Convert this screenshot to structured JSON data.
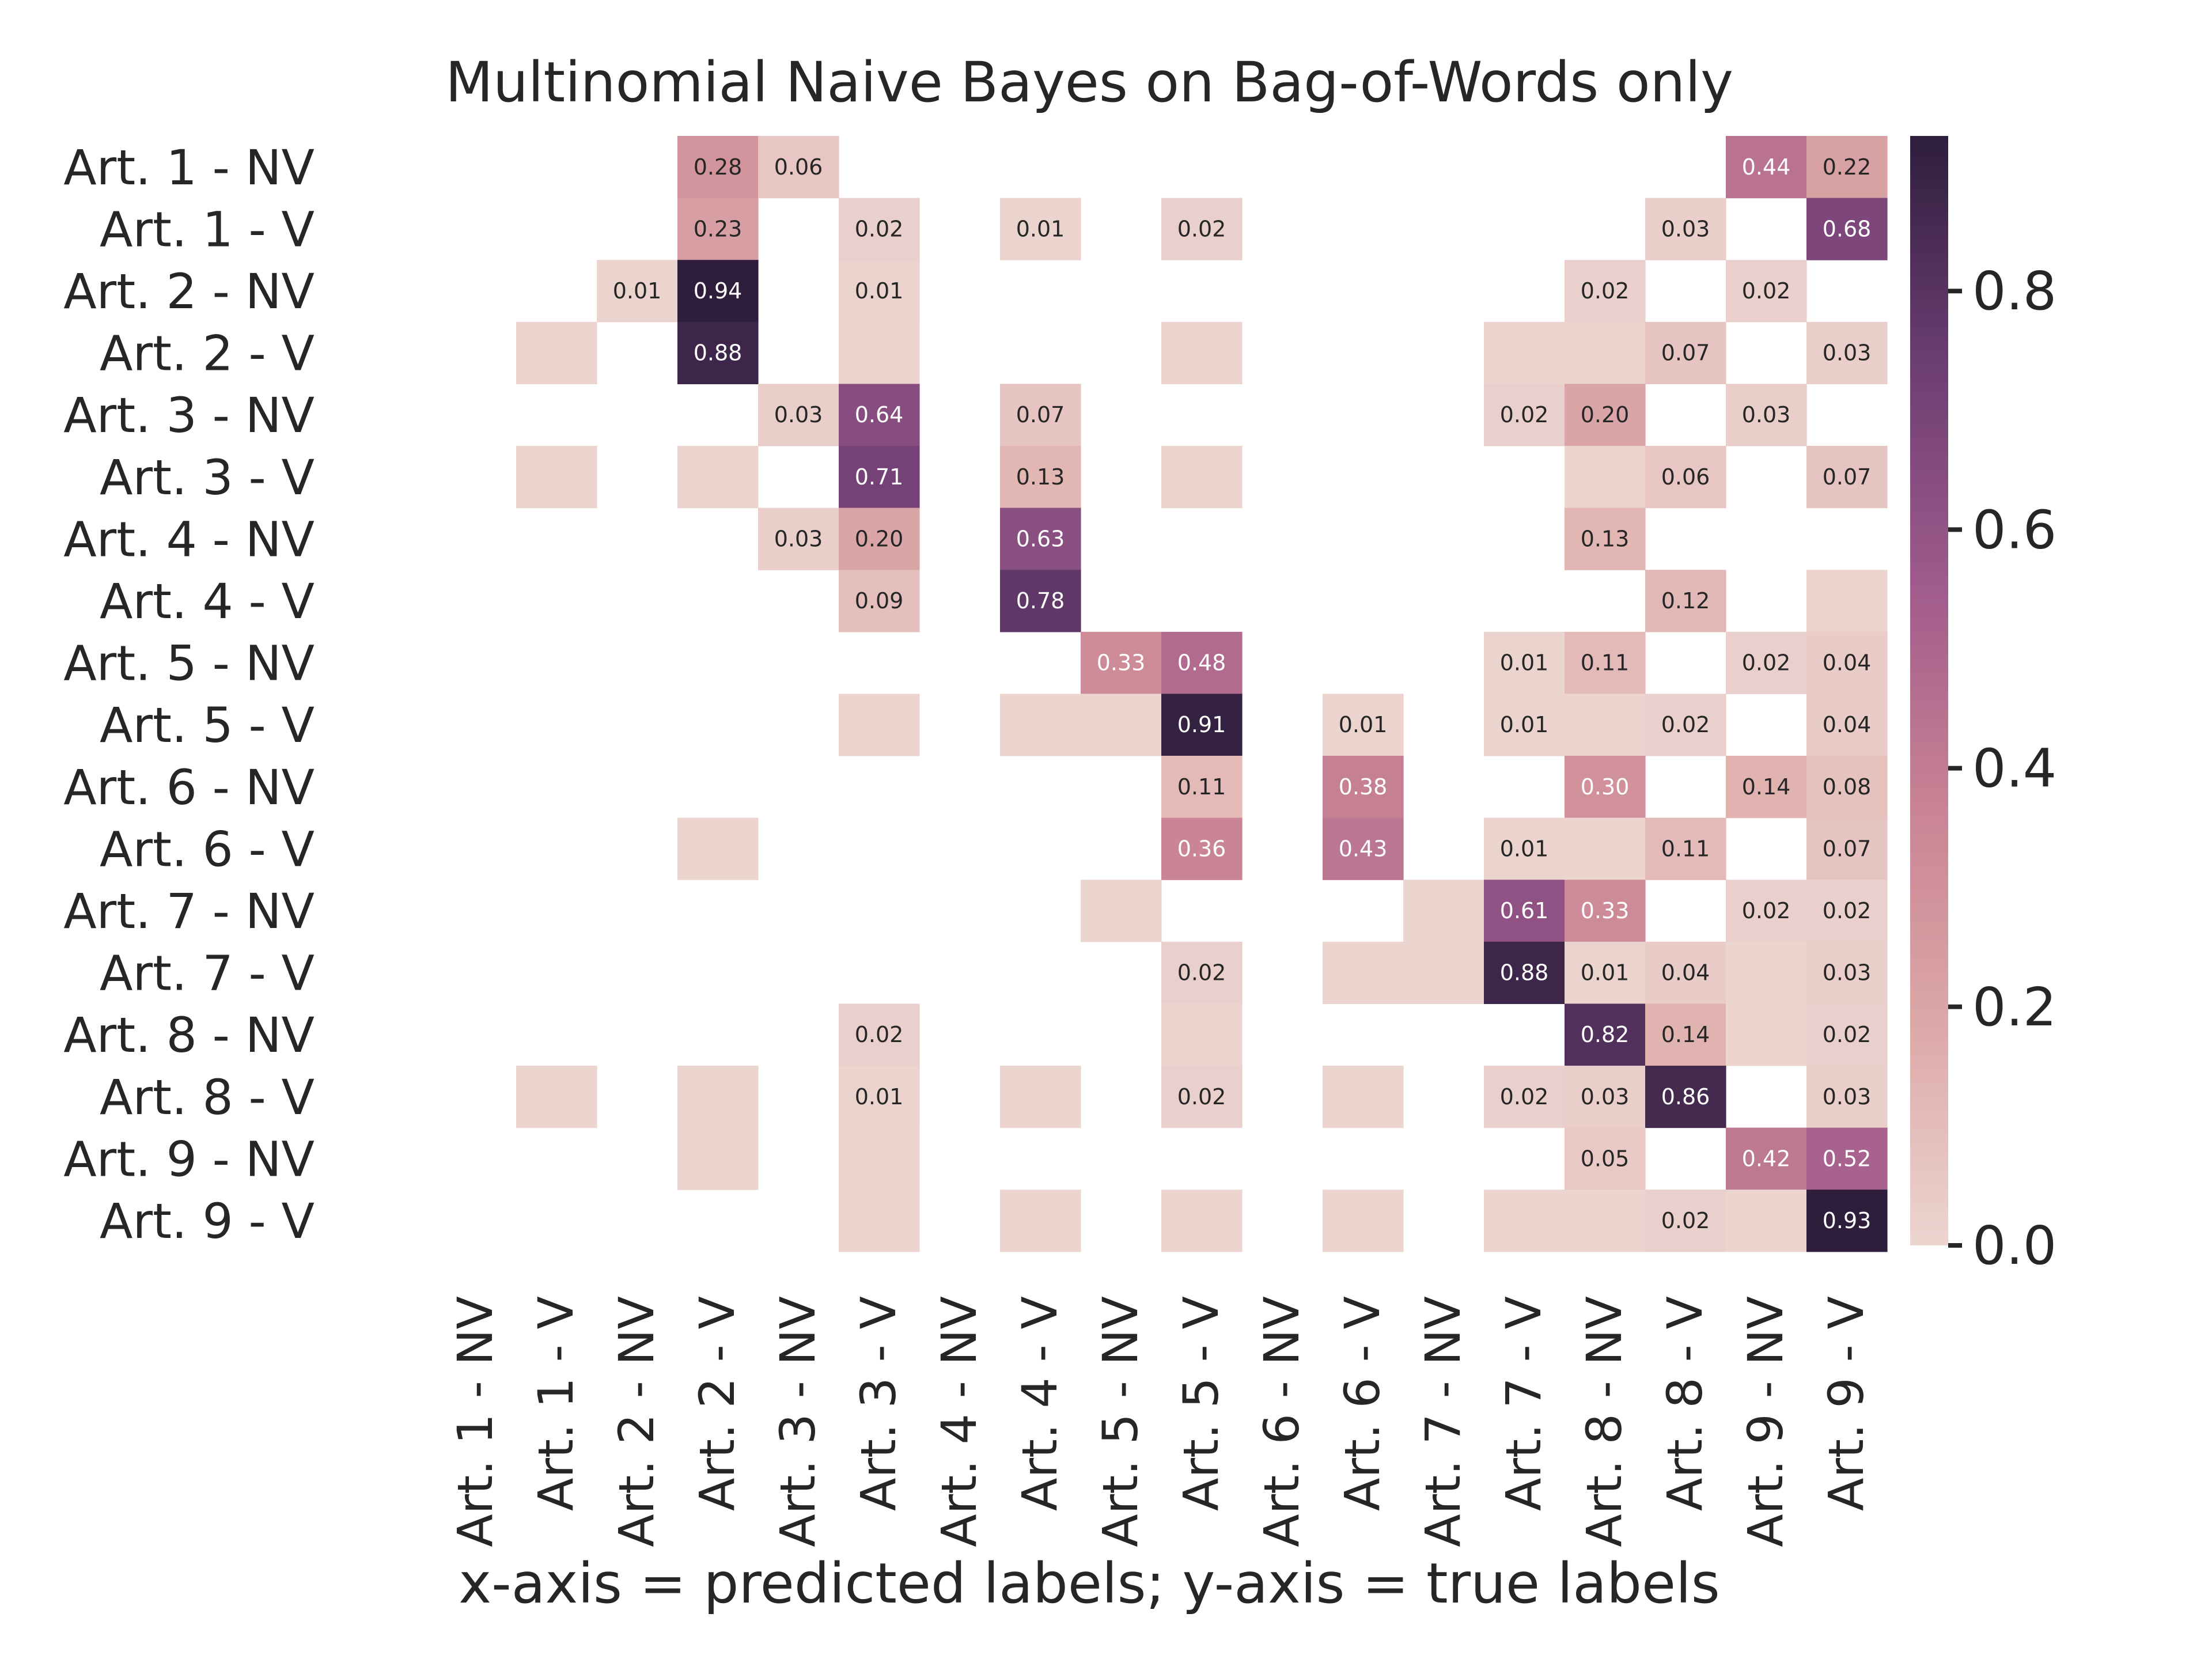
{
  "chart_data": {
    "type": "heatmap",
    "title": "Multinomial Naive Bayes on Bag-of-Words only",
    "xlabel": "x-axis = predicted labels; y-axis = true labels",
    "ylabel": "",
    "x_categories": [
      "Art. 1 - NV",
      "Art. 1 - V",
      "Art. 2 - NV",
      "Art. 2 - V",
      "Art. 3 - NV",
      "Art. 3 - V",
      "Art. 4 - NV",
      "Art. 4 - V",
      "Art. 5 - NV",
      "Art. 5 - V",
      "Art. 6 - NV",
      "Art. 6 - V",
      "Art. 7 - NV",
      "Art. 7 - V",
      "Art. 8 - NV",
      "Art. 8 - V",
      "Art. 9 - NV",
      "Art. 9 - V"
    ],
    "y_categories": [
      "Art. 1 - NV",
      "Art. 1 - V",
      "Art. 2 - NV",
      "Art. 2 - V",
      "Art. 3 - NV",
      "Art. 3 - V",
      "Art. 4 - NV",
      "Art. 4 - V",
      "Art. 5 - NV",
      "Art. 5 - V",
      "Art. 6 - NV",
      "Art. 6 - V",
      "Art. 7 - NV",
      "Art. 7 - V",
      "Art. 8 - NV",
      "Art. 8 - V",
      "Art. 9 - NV",
      "Art. 9 - V"
    ],
    "values": [
      [
        null,
        null,
        null,
        0.28,
        0.06,
        null,
        null,
        null,
        null,
        null,
        null,
        null,
        null,
        null,
        null,
        null,
        0.44,
        0.22
      ],
      [
        null,
        null,
        null,
        0.23,
        null,
        0.02,
        null,
        0.01,
        null,
        0.02,
        null,
        null,
        null,
        null,
        null,
        0.03,
        null,
        0.68
      ],
      [
        null,
        null,
        0.01,
        0.94,
        null,
        0.01,
        null,
        null,
        null,
        null,
        null,
        null,
        null,
        null,
        0.02,
        null,
        0.02,
        null
      ],
      [
        null,
        0.005,
        null,
        0.88,
        null,
        0.005,
        null,
        null,
        null,
        0.005,
        null,
        null,
        null,
        0.005,
        0.005,
        0.07,
        null,
        0.03
      ],
      [
        null,
        null,
        null,
        null,
        0.03,
        0.64,
        null,
        0.07,
        null,
        null,
        null,
        null,
        null,
        0.02,
        0.2,
        null,
        0.03,
        null
      ],
      [
        null,
        0.005,
        null,
        0.005,
        null,
        0.71,
        null,
        0.13,
        null,
        0.005,
        null,
        null,
        null,
        null,
        0.005,
        0.06,
        null,
        0.07
      ],
      [
        null,
        null,
        null,
        null,
        0.03,
        0.2,
        null,
        0.63,
        null,
        null,
        null,
        null,
        null,
        null,
        0.13,
        null,
        null,
        null
      ],
      [
        null,
        null,
        null,
        null,
        null,
        0.09,
        null,
        0.78,
        null,
        null,
        null,
        null,
        null,
        null,
        null,
        0.12,
        null,
        0.005
      ],
      [
        null,
        null,
        null,
        null,
        null,
        null,
        null,
        null,
        0.33,
        0.48,
        null,
        null,
        null,
        0.01,
        0.11,
        null,
        0.02,
        0.04
      ],
      [
        null,
        null,
        null,
        null,
        null,
        0.005,
        null,
        0.005,
        0.005,
        0.91,
        null,
        0.01,
        null,
        0.01,
        0.005,
        0.02,
        null,
        0.04
      ],
      [
        null,
        null,
        null,
        null,
        null,
        null,
        null,
        null,
        null,
        0.11,
        null,
        0.38,
        null,
        null,
        0.3,
        null,
        0.14,
        0.08
      ],
      [
        null,
        null,
        null,
        0.005,
        null,
        null,
        null,
        null,
        null,
        0.36,
        null,
        0.43,
        null,
        0.01,
        0.005,
        0.11,
        null,
        0.07
      ],
      [
        null,
        null,
        null,
        null,
        null,
        null,
        null,
        null,
        0.005,
        null,
        null,
        null,
        0.005,
        0.61,
        0.33,
        null,
        0.02,
        0.02
      ],
      [
        null,
        null,
        null,
        null,
        null,
        null,
        null,
        null,
        null,
        0.02,
        null,
        0.005,
        0.005,
        0.88,
        0.01,
        0.04,
        0.005,
        0.03
      ],
      [
        null,
        null,
        null,
        null,
        null,
        0.02,
        null,
        null,
        null,
        0.005,
        null,
        null,
        null,
        null,
        0.82,
        0.14,
        0.005,
        0.02
      ],
      [
        null,
        0.005,
        null,
        0.005,
        null,
        0.01,
        null,
        0.005,
        null,
        0.02,
        null,
        0.005,
        null,
        0.02,
        0.03,
        0.86,
        null,
        0.03
      ],
      [
        null,
        null,
        null,
        0.005,
        null,
        0.005,
        null,
        null,
        null,
        null,
        null,
        null,
        null,
        null,
        0.05,
        null,
        0.42,
        0.52
      ],
      [
        null,
        null,
        null,
        null,
        null,
        0.005,
        null,
        0.005,
        null,
        0.005,
        null,
        0.005,
        null,
        0.005,
        0.005,
        0.02,
        0.005,
        0.93
      ]
    ],
    "annotations": [
      [
        "",
        "",
        "",
        "0.28",
        "0.06",
        "",
        "",
        "",
        "",
        "",
        "",
        "",
        "",
        "",
        "",
        "",
        "0.44",
        "0.22"
      ],
      [
        "",
        "",
        "",
        "0.23",
        "",
        "0.02",
        "",
        "0.01",
        "",
        "0.02",
        "",
        "",
        "",
        "",
        "",
        "0.03",
        "",
        "0.68"
      ],
      [
        "",
        "",
        "0.01",
        "0.94",
        "",
        "0.01",
        "",
        "",
        "",
        "",
        "",
        "",
        "",
        "",
        "0.02",
        "",
        "0.02",
        ""
      ],
      [
        "",
        "",
        "",
        "0.88",
        "",
        "",
        "",
        "",
        "",
        "",
        "",
        "",
        "",
        "",
        "",
        "0.07",
        "",
        "0.03"
      ],
      [
        "",
        "",
        "",
        "",
        "0.03",
        "0.64",
        "",
        "0.07",
        "",
        "",
        "",
        "",
        "",
        "0.02",
        "0.20",
        "",
        "0.03",
        ""
      ],
      [
        "",
        "",
        "",
        "",
        "",
        "0.71",
        "",
        "0.13",
        "",
        "",
        "",
        "",
        "",
        "",
        "",
        "0.06",
        "",
        "0.07"
      ],
      [
        "",
        "",
        "",
        "",
        "0.03",
        "0.20",
        "",
        "0.63",
        "",
        "",
        "",
        "",
        "",
        "",
        "0.13",
        "",
        "",
        ""
      ],
      [
        "",
        "",
        "",
        "",
        "",
        "0.09",
        "",
        "0.78",
        "",
        "",
        "",
        "",
        "",
        "",
        "",
        "0.12",
        "",
        ""
      ],
      [
        "",
        "",
        "",
        "",
        "",
        "",
        "",
        "",
        "0.33",
        "0.48",
        "",
        "",
        "",
        "0.01",
        "0.11",
        "",
        "0.02",
        "0.04"
      ],
      [
        "",
        "",
        "",
        "",
        "",
        "",
        "",
        "",
        "",
        "0.91",
        "",
        "0.01",
        "",
        "0.01",
        "",
        "0.02",
        "",
        "0.04"
      ],
      [
        "",
        "",
        "",
        "",
        "",
        "",
        "",
        "",
        "",
        "0.11",
        "",
        "0.38",
        "",
        "",
        "0.30",
        "",
        "0.14",
        "0.08"
      ],
      [
        "",
        "",
        "",
        "",
        "",
        "",
        "",
        "",
        "",
        "0.36",
        "",
        "0.43",
        "",
        "0.01",
        "",
        "0.11",
        "",
        "0.07"
      ],
      [
        "",
        "",
        "",
        "",
        "",
        "",
        "",
        "",
        "",
        "",
        "",
        "",
        "",
        "0.61",
        "0.33",
        "",
        "0.02",
        "0.02"
      ],
      [
        "",
        "",
        "",
        "",
        "",
        "",
        "",
        "",
        "",
        "0.02",
        "",
        "",
        "",
        "0.88",
        "0.01",
        "0.04",
        "",
        "0.03"
      ],
      [
        "",
        "",
        "",
        "",
        "",
        "0.02",
        "",
        "",
        "",
        "",
        "",
        "",
        "",
        "",
        "0.82",
        "0.14",
        "",
        "0.02"
      ],
      [
        "",
        "",
        "",
        "",
        "",
        "0.01",
        "",
        "",
        "",
        "0.02",
        "",
        "",
        "",
        "0.02",
        "0.03",
        "0.86",
        "",
        "0.03"
      ],
      [
        "",
        "",
        "",
        "",
        "",
        "",
        "",
        "",
        "",
        "",
        "",
        "",
        "",
        "",
        "0.05",
        "",
        "0.42",
        "0.52"
      ],
      [
        "",
        "",
        "",
        "",
        "",
        "",
        "",
        "",
        "",
        "",
        "",
        "",
        "",
        "",
        "",
        "0.02",
        "",
        "0.93"
      ]
    ],
    "colorbar": {
      "range": [
        0.0,
        0.93
      ],
      "ticks": [
        0.0,
        0.2,
        0.4,
        0.6,
        0.8
      ],
      "tick_labels": [
        "0.0",
        "0.2",
        "0.4",
        "0.6",
        "0.8"
      ],
      "colors": [
        "#ecd5d0",
        "#dca8a7",
        "#c88294",
        "#9e5a8b",
        "#6b3d72",
        "#2e1e3c"
      ]
    },
    "grid": false,
    "legend": "right"
  }
}
